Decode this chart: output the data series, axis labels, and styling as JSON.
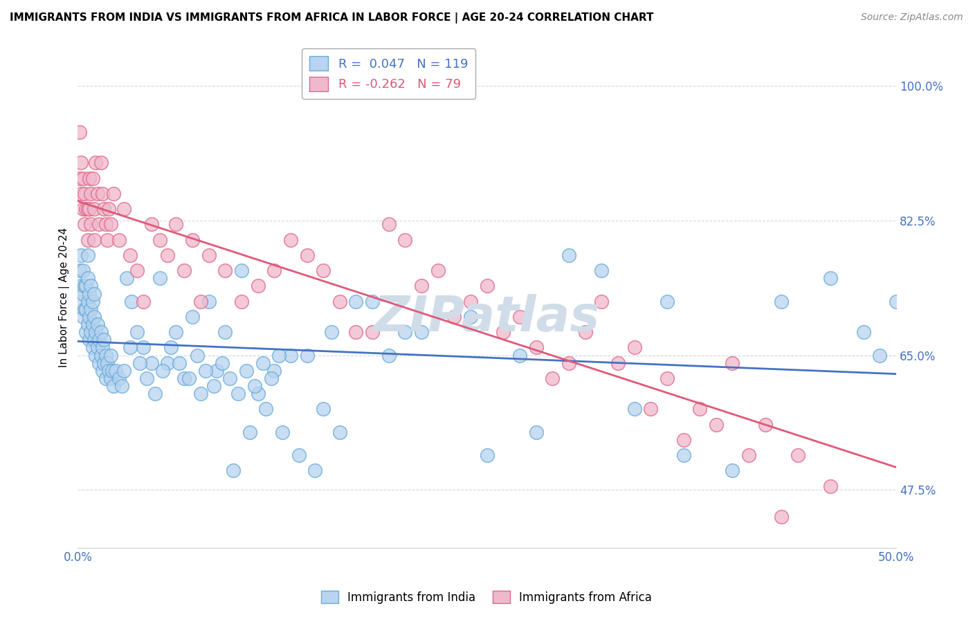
{
  "title": "IMMIGRANTS FROM INDIA VS IMMIGRANTS FROM AFRICA IN LABOR FORCE | AGE 20-24 CORRELATION CHART",
  "source": "Source: ZipAtlas.com",
  "ylabel": "In Labor Force | Age 20-24",
  "xlim": [
    0.0,
    0.5
  ],
  "ylim": [
    0.4,
    1.05
  ],
  "ytick_positions": [
    0.475,
    0.65,
    0.825,
    1.0
  ],
  "ytick_labels": [
    "47.5%",
    "65.0%",
    "82.5%",
    "100.0%"
  ],
  "india_R": 0.047,
  "india_N": 119,
  "africa_R": -0.262,
  "africa_N": 79,
  "india_color": "#b8d4f0",
  "africa_color": "#f0b8cc",
  "india_edge_color": "#6aaad8",
  "africa_edge_color": "#e06888",
  "india_line_color": "#4472c4",
  "africa_line_color": "#e05878",
  "watermark_color": "#d0dce8",
  "grid_color": "#d0d8e0",
  "india_scatter_x": [
    0.001,
    0.001,
    0.002,
    0.002,
    0.003,
    0.003,
    0.003,
    0.004,
    0.004,
    0.005,
    0.005,
    0.005,
    0.006,
    0.006,
    0.006,
    0.006,
    0.007,
    0.007,
    0.007,
    0.008,
    0.008,
    0.008,
    0.009,
    0.009,
    0.009,
    0.01,
    0.01,
    0.01,
    0.011,
    0.011,
    0.012,
    0.012,
    0.013,
    0.013,
    0.014,
    0.014,
    0.015,
    0.015,
    0.016,
    0.016,
    0.017,
    0.017,
    0.018,
    0.019,
    0.02,
    0.02,
    0.021,
    0.022,
    0.023,
    0.025,
    0.027,
    0.03,
    0.033,
    0.036,
    0.04,
    0.045,
    0.05,
    0.06,
    0.07,
    0.08,
    0.09,
    0.1,
    0.11,
    0.12,
    0.14,
    0.155,
    0.17,
    0.19,
    0.21,
    0.24,
    0.27,
    0.3,
    0.34,
    0.37,
    0.4,
    0.43,
    0.46,
    0.48,
    0.49,
    0.5,
    0.2,
    0.25,
    0.28,
    0.32,
    0.36,
    0.18,
    0.13,
    0.15,
    0.16,
    0.055,
    0.065,
    0.075,
    0.085,
    0.095,
    0.105,
    0.115,
    0.125,
    0.135,
    0.145,
    0.028,
    0.032,
    0.038,
    0.042,
    0.047,
    0.052,
    0.057,
    0.062,
    0.068,
    0.073,
    0.078,
    0.083,
    0.088,
    0.093,
    0.098,
    0.103,
    0.108,
    0.113,
    0.118,
    0.123
  ],
  "india_scatter_y": [
    0.72,
    0.76,
    0.74,
    0.78,
    0.7,
    0.73,
    0.76,
    0.71,
    0.74,
    0.68,
    0.71,
    0.74,
    0.69,
    0.72,
    0.75,
    0.78,
    0.67,
    0.7,
    0.73,
    0.68,
    0.71,
    0.74,
    0.66,
    0.69,
    0.72,
    0.67,
    0.7,
    0.73,
    0.65,
    0.68,
    0.66,
    0.69,
    0.64,
    0.67,
    0.65,
    0.68,
    0.63,
    0.66,
    0.64,
    0.67,
    0.62,
    0.65,
    0.64,
    0.63,
    0.62,
    0.65,
    0.63,
    0.61,
    0.63,
    0.62,
    0.61,
    0.75,
    0.72,
    0.68,
    0.66,
    0.64,
    0.75,
    0.68,
    0.7,
    0.72,
    0.68,
    0.76,
    0.6,
    0.63,
    0.65,
    0.68,
    0.72,
    0.65,
    0.68,
    0.7,
    0.65,
    0.78,
    0.58,
    0.52,
    0.5,
    0.72,
    0.75,
    0.68,
    0.65,
    0.72,
    0.68,
    0.52,
    0.55,
    0.76,
    0.72,
    0.72,
    0.65,
    0.58,
    0.55,
    0.64,
    0.62,
    0.6,
    0.63,
    0.5,
    0.55,
    0.58,
    0.55,
    0.52,
    0.5,
    0.63,
    0.66,
    0.64,
    0.62,
    0.6,
    0.63,
    0.66,
    0.64,
    0.62,
    0.65,
    0.63,
    0.61,
    0.64,
    0.62,
    0.6,
    0.63,
    0.61,
    0.64,
    0.62,
    0.65,
    0.63
  ],
  "africa_scatter_x": [
    0.001,
    0.001,
    0.002,
    0.002,
    0.003,
    0.003,
    0.004,
    0.004,
    0.005,
    0.006,
    0.006,
    0.007,
    0.007,
    0.008,
    0.008,
    0.009,
    0.01,
    0.01,
    0.011,
    0.012,
    0.013,
    0.014,
    0.015,
    0.016,
    0.017,
    0.018,
    0.019,
    0.02,
    0.022,
    0.025,
    0.028,
    0.032,
    0.036,
    0.04,
    0.045,
    0.05,
    0.055,
    0.06,
    0.065,
    0.075,
    0.09,
    0.1,
    0.12,
    0.14,
    0.16,
    0.18,
    0.2,
    0.22,
    0.24,
    0.26,
    0.28,
    0.3,
    0.32,
    0.34,
    0.36,
    0.38,
    0.4,
    0.42,
    0.44,
    0.46,
    0.07,
    0.08,
    0.11,
    0.13,
    0.15,
    0.17,
    0.19,
    0.21,
    0.23,
    0.25,
    0.27,
    0.29,
    0.31,
    0.33,
    0.35,
    0.37,
    0.39,
    0.41,
    0.43
  ],
  "africa_scatter_y": [
    0.88,
    0.94,
    0.86,
    0.9,
    0.84,
    0.88,
    0.82,
    0.86,
    0.84,
    0.8,
    0.84,
    0.88,
    0.84,
    0.86,
    0.82,
    0.88,
    0.84,
    0.8,
    0.9,
    0.86,
    0.82,
    0.9,
    0.86,
    0.84,
    0.82,
    0.8,
    0.84,
    0.82,
    0.86,
    0.8,
    0.84,
    0.78,
    0.76,
    0.72,
    0.82,
    0.8,
    0.78,
    0.82,
    0.76,
    0.72,
    0.76,
    0.72,
    0.76,
    0.78,
    0.72,
    0.68,
    0.8,
    0.76,
    0.72,
    0.68,
    0.66,
    0.64,
    0.72,
    0.66,
    0.62,
    0.58,
    0.64,
    0.56,
    0.52,
    0.48,
    0.8,
    0.78,
    0.74,
    0.8,
    0.76,
    0.68,
    0.82,
    0.74,
    0.7,
    0.74,
    0.7,
    0.62,
    0.68,
    0.64,
    0.58,
    0.54,
    0.56,
    0.52,
    0.44
  ]
}
